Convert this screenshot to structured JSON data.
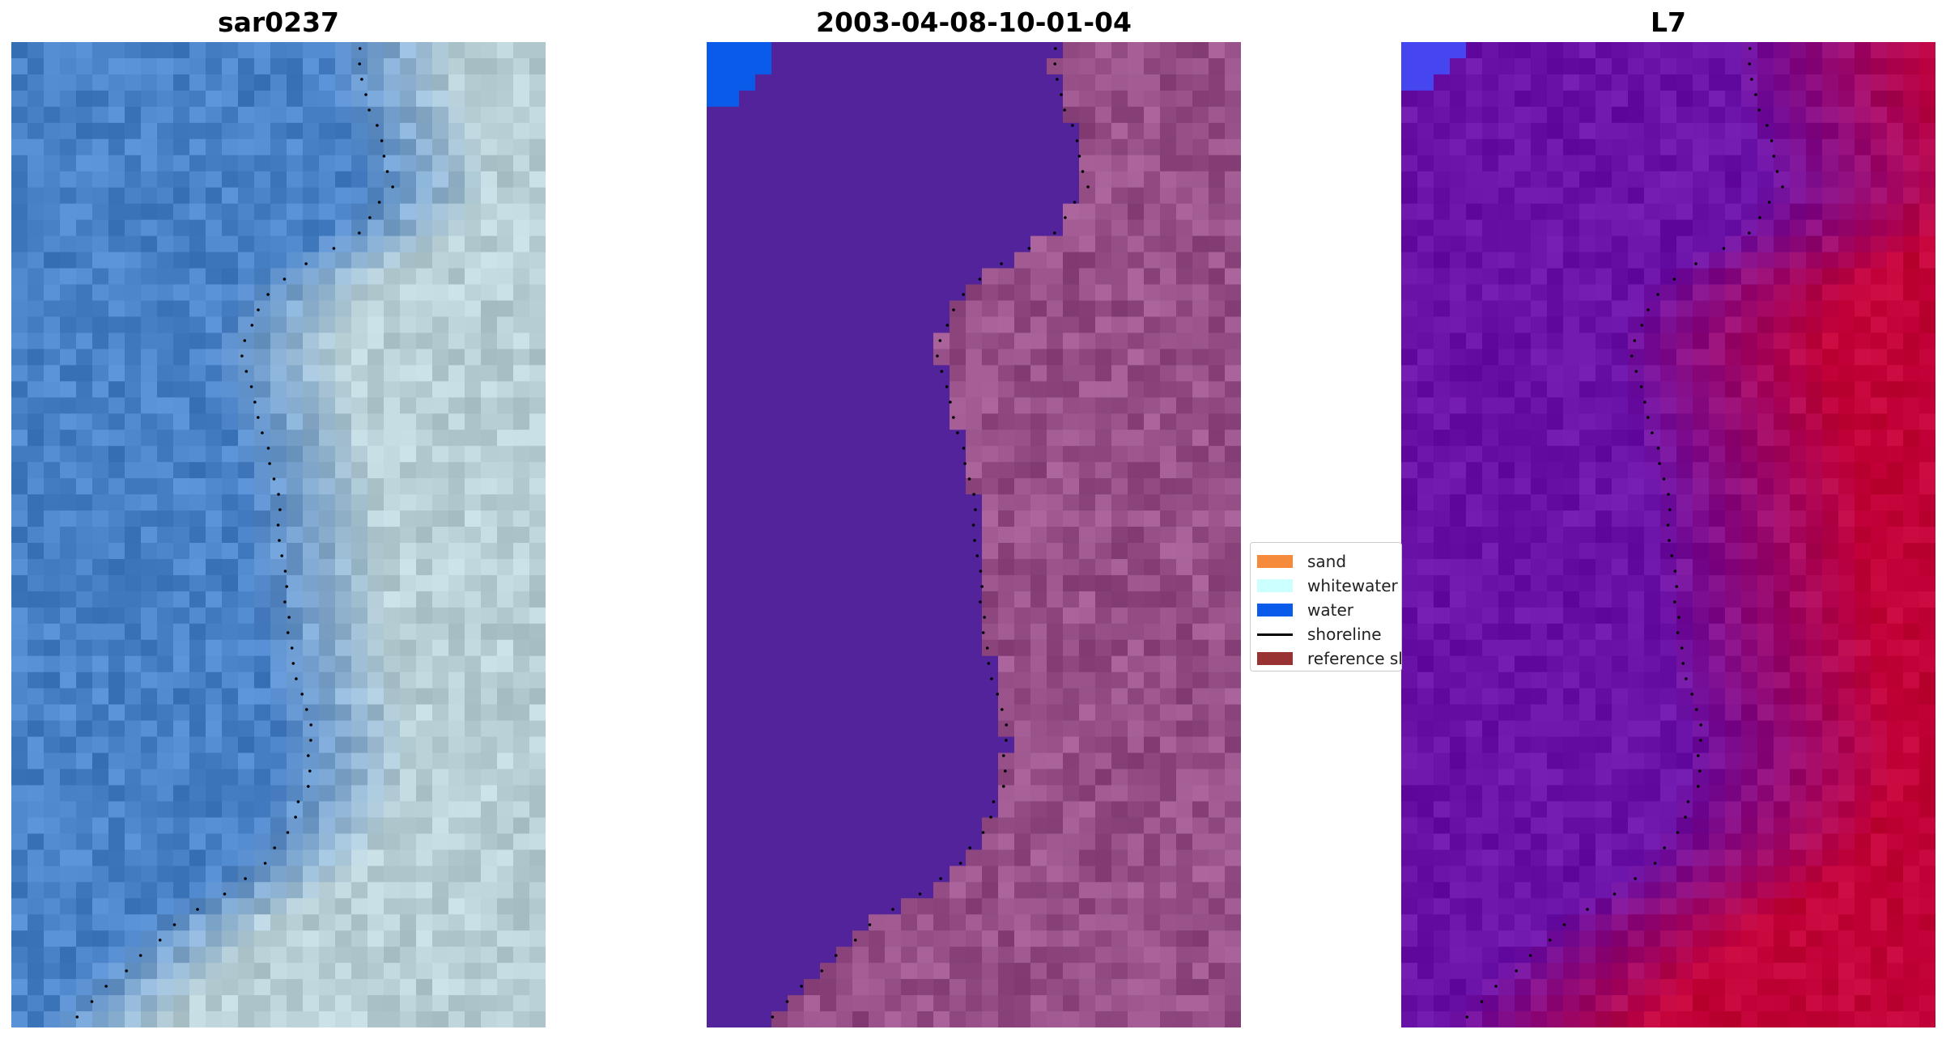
{
  "panels": [
    {
      "title": "sar0237",
      "palette": "rgb"
    },
    {
      "title": "2003-04-08-10-01-04",
      "palette": "classified"
    },
    {
      "title": "L7",
      "palette": "index"
    }
  ],
  "legend": {
    "items": [
      {
        "label": "sand",
        "kind": "patch",
        "color": "#f58a3a"
      },
      {
        "label": "whitewater",
        "kind": "patch",
        "color": "#ccffff"
      },
      {
        "label": "water",
        "kind": "patch",
        "color": "#0a5bea"
      },
      {
        "label": "shoreline",
        "kind": "line",
        "color": "#000000"
      },
      {
        "label": "reference sl",
        "kind": "patch",
        "color": "#993333"
      }
    ]
  },
  "colors": {
    "water_class": "#52239a",
    "water_patch": "#0a5bea",
    "index_low": "#6a12a8",
    "index_high": "#c20038",
    "rgb_water": "#4a82c8",
    "rgb_land": "#b8cfd6"
  }
}
